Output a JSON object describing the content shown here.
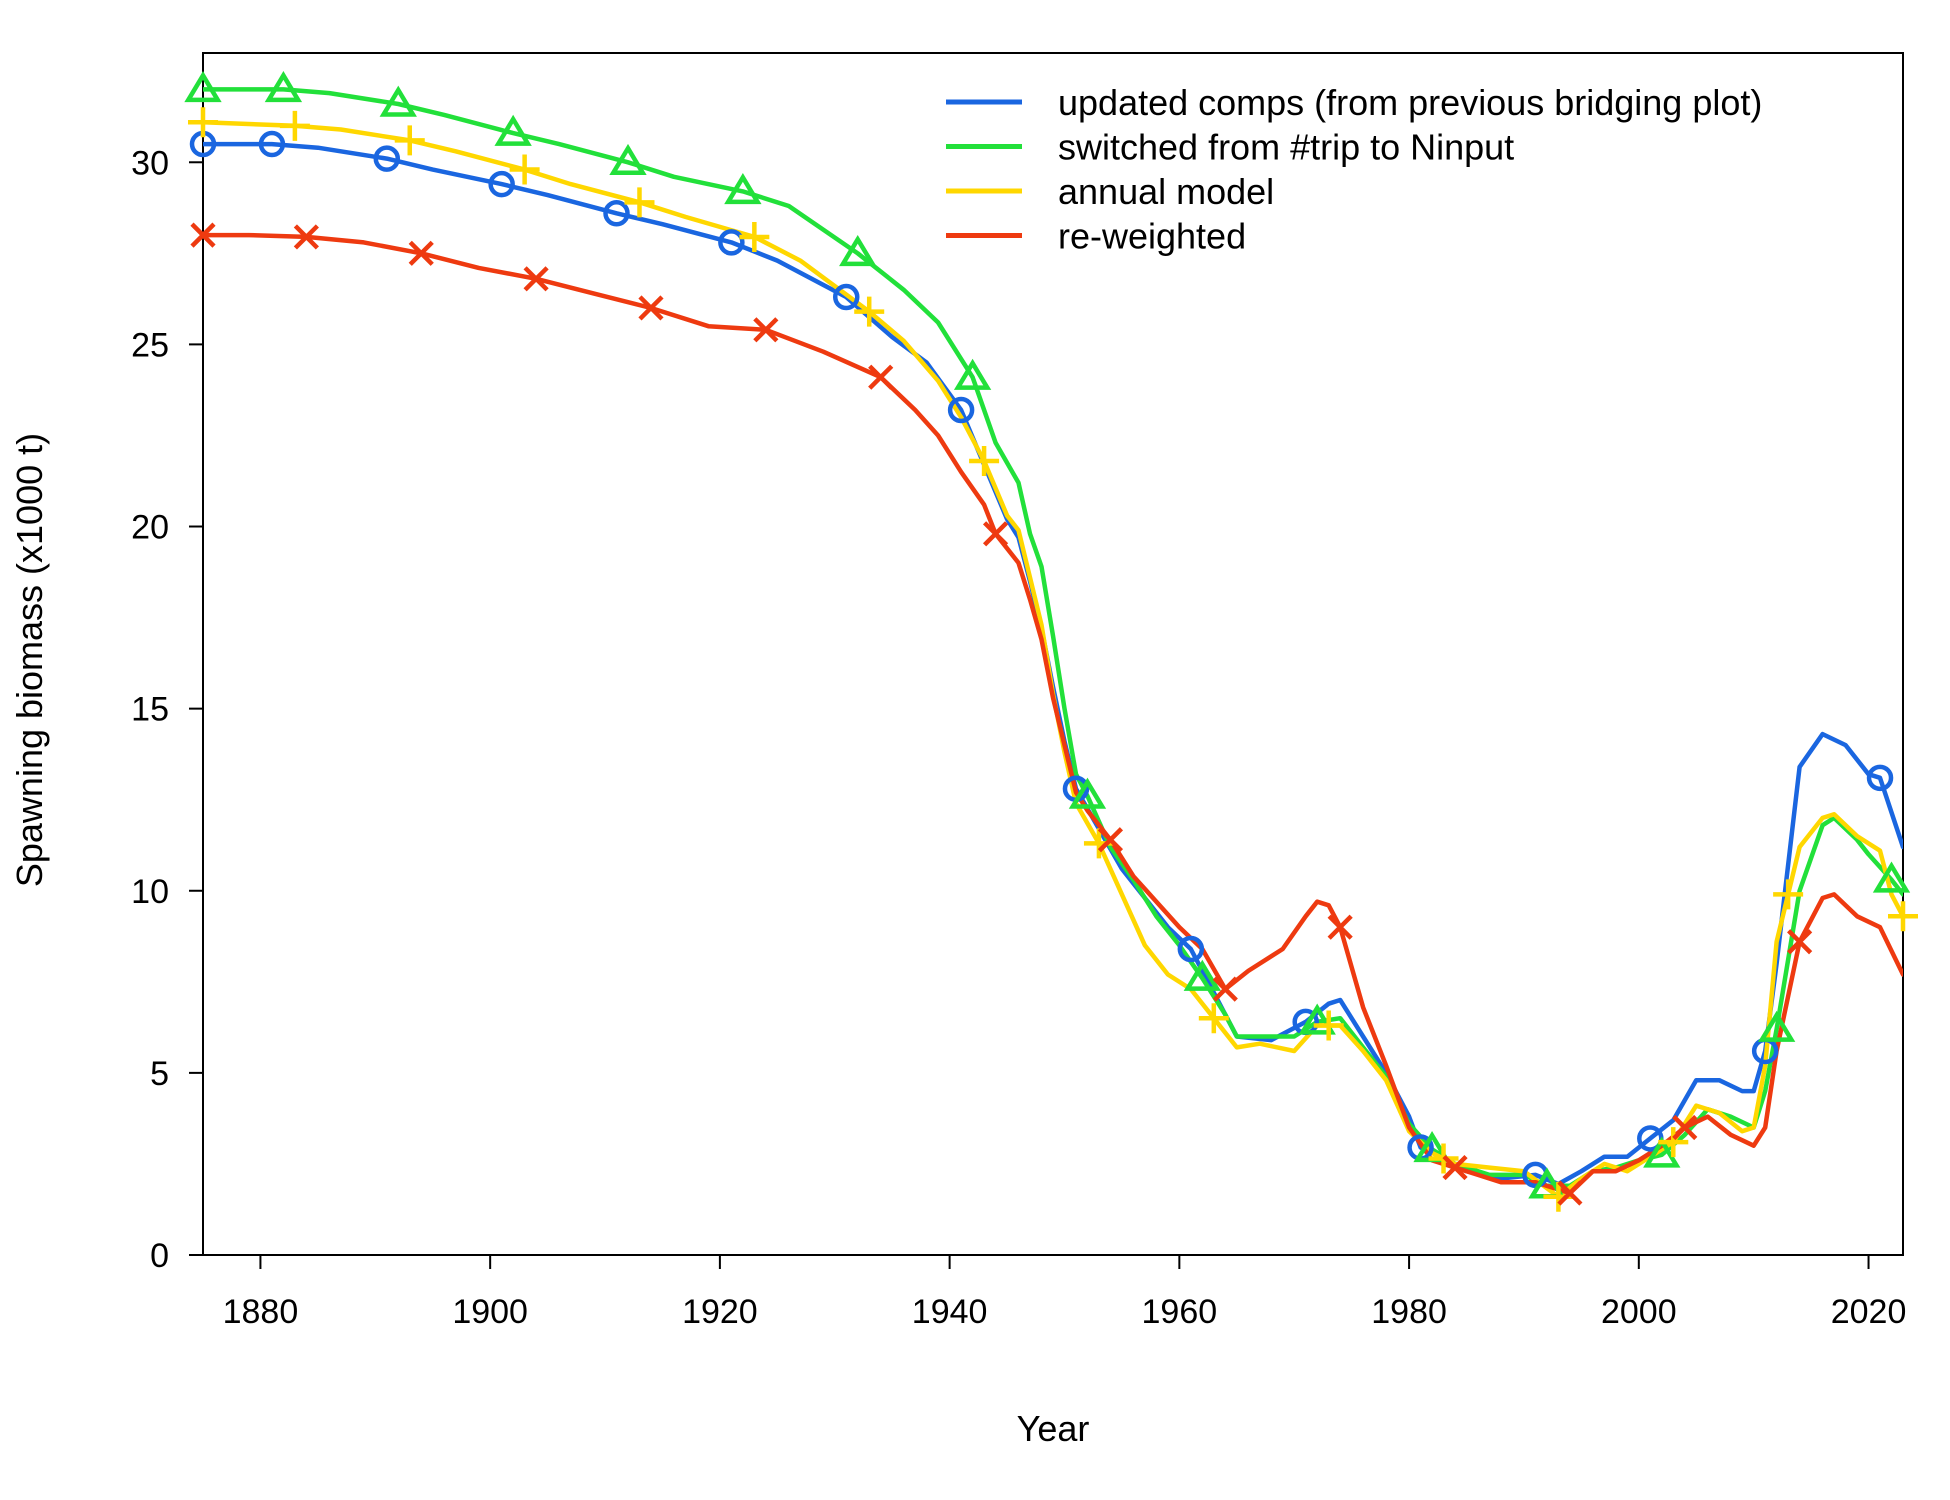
{
  "chart_data": {
    "type": "line",
    "title": "",
    "xlabel": "Year",
    "ylabel": "Spawning biomass (x1000 t)",
    "xlim": [
      1875,
      2023
    ],
    "ylim": [
      0,
      33
    ],
    "x_ticks": [
      1880,
      1900,
      1920,
      1940,
      1960,
      1980,
      2000,
      2020
    ],
    "y_ticks": [
      0,
      5,
      10,
      15,
      20,
      25,
      30
    ],
    "x_tick_labels": [
      "1880",
      "1900",
      "1920",
      "1940",
      "1960",
      "1980",
      "2000",
      "2020"
    ],
    "y_tick_labels": [
      "0",
      "5",
      "10",
      "15",
      "20",
      "25",
      "30"
    ],
    "grid": false,
    "legend_position": "top-right",
    "series": [
      {
        "name": "updated comps (from previous bridging plot)",
        "color": "#1a66e0",
        "marker": "circle",
        "points": [
          [
            1875,
            30.5
          ],
          [
            1881,
            30.5
          ],
          [
            1885,
            30.4
          ],
          [
            1891,
            30.1
          ],
          [
            1895,
            29.8
          ],
          [
            1901,
            29.4
          ],
          [
            1905,
            29.1
          ],
          [
            1911,
            28.6
          ],
          [
            1915,
            28.3
          ],
          [
            1921,
            27.8
          ],
          [
            1925,
            27.3
          ],
          [
            1931,
            26.3
          ],
          [
            1935,
            25.2
          ],
          [
            1938,
            24.5
          ],
          [
            1941,
            23.2
          ],
          [
            1943,
            21.7
          ],
          [
            1945,
            20.2
          ],
          [
            1946,
            19.7
          ],
          [
            1947,
            18.5
          ],
          [
            1948,
            17.2
          ],
          [
            1949,
            15.6
          ],
          [
            1950,
            14.1
          ],
          [
            1951,
            12.8
          ],
          [
            1953,
            11.7
          ],
          [
            1955,
            10.6
          ],
          [
            1957,
            9.8
          ],
          [
            1959,
            9.0
          ],
          [
            1961,
            8.4
          ],
          [
            1963,
            7.2
          ],
          [
            1965,
            6.0
          ],
          [
            1968,
            5.9
          ],
          [
            1971,
            6.4
          ],
          [
            1973,
            6.9
          ],
          [
            1974,
            7.0
          ],
          [
            1976,
            6.0
          ],
          [
            1978,
            5.0
          ],
          [
            1980,
            3.8
          ],
          [
            1981,
            2.95
          ],
          [
            1983,
            2.7
          ],
          [
            1985,
            2.3
          ],
          [
            1988,
            2.1
          ],
          [
            1991,
            2.2
          ],
          [
            1993,
            1.95
          ],
          [
            1995,
            2.3
          ],
          [
            1997,
            2.7
          ],
          [
            1999,
            2.7
          ],
          [
            2001,
            3.2
          ],
          [
            2003,
            3.7
          ],
          [
            2005,
            4.8
          ],
          [
            2007,
            4.8
          ],
          [
            2009,
            4.5
          ],
          [
            2010,
            4.5
          ],
          [
            2011,
            5.6
          ],
          [
            2012,
            8.0
          ],
          [
            2014,
            13.4
          ],
          [
            2016,
            14.3
          ],
          [
            2018,
            14.0
          ],
          [
            2020,
            13.2
          ],
          [
            2021,
            13.1
          ],
          [
            2023,
            11.2
          ]
        ]
      },
      {
        "name": "switched from #trip to Ninput",
        "color": "#22e03a",
        "marker": "triangle",
        "points": [
          [
            1875,
            32.0
          ],
          [
            1882,
            32.0
          ],
          [
            1886,
            31.9
          ],
          [
            1892,
            31.6
          ],
          [
            1896,
            31.3
          ],
          [
            1902,
            30.8
          ],
          [
            1906,
            30.5
          ],
          [
            1912,
            30.0
          ],
          [
            1916,
            29.6
          ],
          [
            1922,
            29.2
          ],
          [
            1926,
            28.8
          ],
          [
            1932,
            27.5
          ],
          [
            1936,
            26.5
          ],
          [
            1939,
            25.6
          ],
          [
            1942,
            24.1
          ],
          [
            1944,
            22.3
          ],
          [
            1946,
            21.2
          ],
          [
            1947,
            19.8
          ],
          [
            1948,
            18.9
          ],
          [
            1949,
            17.0
          ],
          [
            1950,
            15.0
          ],
          [
            1951,
            13.2
          ],
          [
            1952,
            12.6
          ],
          [
            1954,
            11.2
          ],
          [
            1956,
            10.3
          ],
          [
            1958,
            9.3
          ],
          [
            1960,
            8.5
          ],
          [
            1962,
            7.6
          ],
          [
            1964,
            6.6
          ],
          [
            1965,
            6.0
          ],
          [
            1968,
            6.0
          ],
          [
            1970,
            6.0
          ],
          [
            1972,
            6.4
          ],
          [
            1974,
            6.5
          ],
          [
            1976,
            5.7
          ],
          [
            1978,
            4.9
          ],
          [
            1980,
            3.6
          ],
          [
            1982,
            2.9
          ],
          [
            1984,
            2.5
          ],
          [
            1987,
            2.2
          ],
          [
            1990,
            2.2
          ],
          [
            1992,
            1.9
          ],
          [
            1994,
            1.9
          ],
          [
            1996,
            2.3
          ],
          [
            1998,
            2.4
          ],
          [
            2000,
            2.6
          ],
          [
            2002,
            2.75
          ],
          [
            2004,
            3.3
          ],
          [
            2006,
            4.0
          ],
          [
            2008,
            3.8
          ],
          [
            2010,
            3.5
          ],
          [
            2011,
            4.5
          ],
          [
            2012,
            6.2
          ],
          [
            2014,
            10.0
          ],
          [
            2016,
            11.8
          ],
          [
            2017,
            12.0
          ],
          [
            2019,
            11.4
          ],
          [
            2020,
            11.0
          ],
          [
            2022,
            10.3
          ],
          [
            2023,
            9.9
          ]
        ]
      },
      {
        "name": "annual model",
        "color": "#ffd700",
        "marker": "plus",
        "points": [
          [
            1875,
            31.1
          ],
          [
            1883,
            31.0
          ],
          [
            1887,
            30.9
          ],
          [
            1893,
            30.6
          ],
          [
            1897,
            30.3
          ],
          [
            1903,
            29.8
          ],
          [
            1907,
            29.4
          ],
          [
            1913,
            28.9
          ],
          [
            1917,
            28.5
          ],
          [
            1923,
            27.95
          ],
          [
            1927,
            27.3
          ],
          [
            1933,
            25.9
          ],
          [
            1936,
            25.1
          ],
          [
            1939,
            24.0
          ],
          [
            1941,
            23.0
          ],
          [
            1943,
            21.8
          ],
          [
            1945,
            20.3
          ],
          [
            1946,
            19.9
          ],
          [
            1947,
            18.6
          ],
          [
            1948,
            17.3
          ],
          [
            1949,
            15.4
          ],
          [
            1950,
            13.8
          ],
          [
            1951,
            12.4
          ],
          [
            1953,
            11.3
          ],
          [
            1955,
            9.9
          ],
          [
            1957,
            8.5
          ],
          [
            1959,
            7.7
          ],
          [
            1961,
            7.3
          ],
          [
            1963,
            6.5
          ],
          [
            1965,
            5.7
          ],
          [
            1967,
            5.8
          ],
          [
            1970,
            5.6
          ],
          [
            1972,
            6.3
          ],
          [
            1974,
            6.3
          ],
          [
            1976,
            5.6
          ],
          [
            1978,
            4.8
          ],
          [
            1980,
            3.4
          ],
          [
            1982,
            2.8
          ],
          [
            1984,
            2.5
          ],
          [
            1987,
            2.4
          ],
          [
            1990,
            2.3
          ],
          [
            1993,
            1.6
          ],
          [
            1995,
            2.1
          ],
          [
            1997,
            2.5
          ],
          [
            1999,
            2.3
          ],
          [
            2001,
            2.7
          ],
          [
            2003,
            3.1
          ],
          [
            2005,
            4.1
          ],
          [
            2007,
            3.9
          ],
          [
            2009,
            3.4
          ],
          [
            2010,
            3.5
          ],
          [
            2011,
            5.2
          ],
          [
            2012,
            8.6
          ],
          [
            2014,
            11.2
          ],
          [
            2016,
            12.0
          ],
          [
            2017,
            12.1
          ],
          [
            2019,
            11.5
          ],
          [
            2021,
            11.1
          ],
          [
            2022,
            9.9
          ],
          [
            2023,
            9.3
          ]
        ]
      },
      {
        "name": "re-weighted",
        "color": "#ee3a10",
        "marker": "x",
        "points": [
          [
            1875,
            28.0
          ],
          [
            1879,
            28.0
          ],
          [
            1884,
            27.95
          ],
          [
            1889,
            27.8
          ],
          [
            1894,
            27.5
          ],
          [
            1899,
            27.1
          ],
          [
            1904,
            26.8
          ],
          [
            1909,
            26.4
          ],
          [
            1914,
            26.0
          ],
          [
            1919,
            25.5
          ],
          [
            1924,
            25.4
          ],
          [
            1929,
            24.8
          ],
          [
            1934,
            24.1
          ],
          [
            1937,
            23.2
          ],
          [
            1939,
            22.5
          ],
          [
            1941,
            21.5
          ],
          [
            1943,
            20.6
          ],
          [
            1944,
            19.8
          ],
          [
            1946,
            19.0
          ],
          [
            1947,
            18.0
          ],
          [
            1948,
            16.9
          ],
          [
            1949,
            15.3
          ],
          [
            1950,
            14.0
          ],
          [
            1951,
            12.7
          ],
          [
            1952,
            12.2
          ],
          [
            1954,
            11.4
          ],
          [
            1956,
            10.4
          ],
          [
            1958,
            9.7
          ],
          [
            1960,
            9.0
          ],
          [
            1962,
            8.4
          ],
          [
            1964,
            7.3
          ],
          [
            1966,
            7.8
          ],
          [
            1969,
            8.4
          ],
          [
            1971,
            9.3
          ],
          [
            1972,
            9.7
          ],
          [
            1973,
            9.6
          ],
          [
            1974,
            9.0
          ],
          [
            1976,
            6.8
          ],
          [
            1978,
            5.2
          ],
          [
            1980,
            3.5
          ],
          [
            1982,
            2.6
          ],
          [
            1984,
            2.4
          ],
          [
            1986,
            2.2
          ],
          [
            1988,
            2.0
          ],
          [
            1991,
            2.0
          ],
          [
            1994,
            1.7
          ],
          [
            1996,
            2.3
          ],
          [
            1998,
            2.3
          ],
          [
            2000,
            2.6
          ],
          [
            2002,
            3.0
          ],
          [
            2004,
            3.5
          ],
          [
            2006,
            3.8
          ],
          [
            2008,
            3.3
          ],
          [
            2010,
            3.0
          ],
          [
            2011,
            3.5
          ],
          [
            2012,
            5.6
          ],
          [
            2014,
            8.6
          ],
          [
            2016,
            9.8
          ],
          [
            2017,
            9.9
          ],
          [
            2019,
            9.3
          ],
          [
            2021,
            9.0
          ],
          [
            2023,
            7.7
          ]
        ]
      }
    ]
  }
}
